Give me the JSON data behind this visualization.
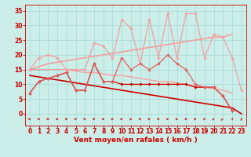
{
  "x": [
    0,
    1,
    2,
    3,
    4,
    5,
    6,
    7,
    8,
    9,
    10,
    11,
    12,
    13,
    14,
    15,
    16,
    17,
    18,
    19,
    20,
    21,
    22,
    23
  ],
  "series": [
    {
      "name": "dark_red_zigzag",
      "color": "#cc0000",
      "linewidth": 0.9,
      "marker": "D",
      "markersize": 1.8,
      "y": [
        7,
        11,
        12,
        13,
        14,
        8,
        8,
        17,
        11,
        11,
        10,
        10,
        10,
        10,
        10,
        10,
        10,
        10,
        9,
        9,
        9,
        6,
        1,
        null
      ]
    },
    {
      "name": "dark_red_linear_declining",
      "color": "#cc0000",
      "linewidth": 1.2,
      "marker": null,
      "y": [
        13,
        12.5,
        12,
        11.5,
        11,
        10.5,
        10,
        9.5,
        9,
        8.5,
        8,
        7.5,
        7,
        6.5,
        6,
        5.5,
        5,
        4.5,
        4,
        3.5,
        3,
        2.5,
        2,
        0
      ]
    },
    {
      "name": "medium_red_zigzag",
      "color": "#e06060",
      "linewidth": 0.9,
      "marker": "D",
      "markersize": 1.8,
      "y": [
        7,
        11,
        12,
        13,
        14,
        8,
        8,
        17,
        11,
        11,
        19,
        15,
        17,
        15,
        17,
        20,
        17,
        15,
        10,
        9,
        9,
        6,
        1,
        null
      ]
    },
    {
      "name": "light_red_linear_upper",
      "color": "#f4a0a0",
      "linewidth": 1.2,
      "marker": null,
      "y": [
        15,
        16,
        17,
        17.5,
        18,
        18.5,
        19,
        19.5,
        20,
        20.5,
        21,
        21.5,
        22,
        22.5,
        23,
        23.5,
        24,
        24.5,
        25,
        25.5,
        26,
        26,
        27,
        null
      ]
    },
    {
      "name": "light_red_wavy",
      "color": "#f4a0a0",
      "linewidth": 0.9,
      "marker": "D",
      "markersize": 1.8,
      "y": [
        15,
        19,
        20,
        19,
        15,
        15,
        15,
        24,
        23,
        19,
        32,
        29,
        17,
        32,
        19,
        34,
        19,
        34,
        34,
        19,
        27,
        26,
        19,
        8
      ]
    },
    {
      "name": "light_red_linear_lower",
      "color": "#f4a0a0",
      "linewidth": 1.0,
      "marker": null,
      "y": [
        15,
        15,
        15,
        15,
        15,
        14.5,
        14,
        14,
        13.5,
        13,
        13,
        12.5,
        12,
        11.5,
        11,
        11,
        10.5,
        10,
        9.5,
        9,
        8.5,
        8,
        7,
        null
      ]
    }
  ],
  "wind_arrows": {
    "y": -1.8,
    "angles": [
      0,
      0,
      0,
      0,
      0,
      10,
      0,
      0,
      0,
      0,
      0,
      15,
      0,
      10,
      0,
      0,
      10,
      0,
      0,
      15,
      25,
      50,
      70,
      90
    ],
    "color": "#cc0000"
  },
  "xlabel": "Vent moyen/en rafales ( km/h )",
  "xlabel_color": "#cc0000",
  "xlabel_fontsize": 6.5,
  "xticks": [
    0,
    1,
    2,
    3,
    4,
    5,
    6,
    7,
    8,
    9,
    10,
    11,
    12,
    13,
    14,
    15,
    16,
    17,
    18,
    19,
    20,
    21,
    22,
    23
  ],
  "yticks": [
    0,
    5,
    10,
    15,
    20,
    25,
    30,
    35
  ],
  "ylim": [
    -4,
    37
  ],
  "xlim": [
    -0.5,
    23.5
  ],
  "bg_color": "#cceee8",
  "grid_color": "#aadddd",
  "tick_color": "#cc0000",
  "tick_fontsize": 5.5,
  "figsize": [
    3.2,
    2.0
  ],
  "dpi": 100
}
